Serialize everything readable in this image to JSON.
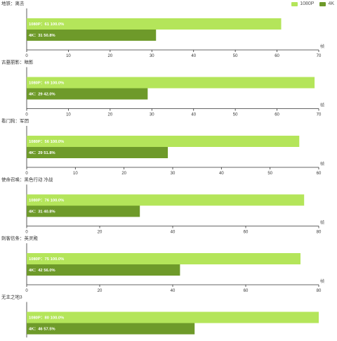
{
  "legend": {
    "position": "top-right",
    "items": [
      {
        "label": "1080P",
        "color": "#b4e55a"
      },
      {
        "label": "4K",
        "color": "#6e9a2a"
      }
    ]
  },
  "chart_data": [
    {
      "type": "bar",
      "orientation": "horizontal",
      "title": "地铁：离去",
      "xlabel": "帧",
      "xlim": [
        0,
        70
      ],
      "xticks": [
        0,
        10,
        20,
        30,
        40,
        50,
        60,
        70
      ],
      "series": [
        {
          "name": "1080P",
          "value": 61,
          "label": "1080P：61  100.0%",
          "color": "#b4e55a"
        },
        {
          "name": "4K",
          "value": 31,
          "label": "4K：31  50.8%",
          "color": "#6e9a2a"
        }
      ]
    },
    {
      "type": "bar",
      "orientation": "horizontal",
      "title": "古墓丽影：暗影",
      "xlabel": "帧",
      "xlim": [
        0,
        70
      ],
      "xticks": [
        0,
        10,
        20,
        30,
        40,
        50,
        60,
        70
      ],
      "series": [
        {
          "name": "1080P",
          "value": 69,
          "label": "1080P：69  100.0%",
          "color": "#b4e55a"
        },
        {
          "name": "4K",
          "value": 29,
          "label": "4K：29  42.0%",
          "color": "#6e9a2a"
        }
      ]
    },
    {
      "type": "bar",
      "orientation": "horizontal",
      "title": "看门狗：军团",
      "xlabel": "帧",
      "xlim": [
        0,
        60
      ],
      "xticks": [
        0,
        10,
        20,
        30,
        40,
        50,
        60
      ],
      "series": [
        {
          "name": "1080P",
          "value": 56,
          "label": "1080P：56  100.0%",
          "color": "#b4e55a"
        },
        {
          "name": "4K",
          "value": 29,
          "label": "4K：29  51.8%",
          "color": "#6e9a2a"
        }
      ]
    },
    {
      "type": "bar",
      "orientation": "horizontal",
      "title": "使命召唤：黑色行动 冷战",
      "xlabel": "帧",
      "xlim": [
        0,
        80
      ],
      "xticks": [
        0,
        20,
        40,
        60,
        80
      ],
      "series": [
        {
          "name": "1080P",
          "value": 76,
          "label": "1080P：76  100.0%",
          "color": "#b4e55a"
        },
        {
          "name": "4K",
          "value": 31,
          "label": "4K：31  40.8%",
          "color": "#6e9a2a"
        }
      ]
    },
    {
      "type": "bar",
      "orientation": "horizontal",
      "title": "刺客信条：英灵殿",
      "xlabel": "帧",
      "xlim": [
        0,
        80
      ],
      "xticks": [
        0,
        20,
        40,
        60,
        80
      ],
      "series": [
        {
          "name": "1080P",
          "value": 75,
          "label": "1080P：75  100.0%",
          "color": "#b4e55a"
        },
        {
          "name": "4K",
          "value": 42,
          "label": "4K：42  56.0%",
          "color": "#6e9a2a"
        }
      ]
    },
    {
      "type": "bar",
      "orientation": "horizontal",
      "title": "无主之地3",
      "xlabel": "帧",
      "xlim": [
        0,
        80
      ],
      "xticks": [
        0,
        20,
        40,
        60,
        80
      ],
      "series": [
        {
          "name": "1080P",
          "value": 80,
          "label": "1080P：80  100.0%",
          "color": "#b4e55a"
        },
        {
          "name": "4K",
          "value": 46,
          "label": "4K：46  57.5%",
          "color": "#6e9a2a"
        }
      ]
    }
  ]
}
